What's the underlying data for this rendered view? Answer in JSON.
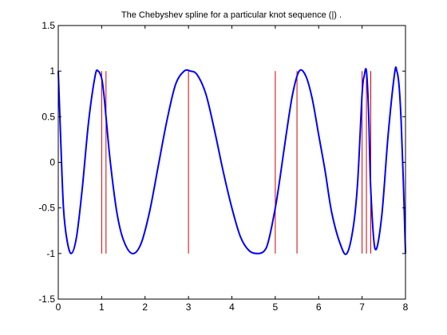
{
  "chart_data": {
    "type": "line",
    "title": "The Chebyshev spline for a particular knot sequence (|) .",
    "xlabel": "",
    "ylabel": "",
    "xlim": [
      0,
      8
    ],
    "ylim": [
      -1.5,
      1.5
    ],
    "xticks": [
      0,
      1,
      2,
      3,
      4,
      5,
      6,
      7,
      8
    ],
    "xtick_labels": [
      "0",
      "1",
      "2",
      "3",
      "4",
      "5",
      "6",
      "7",
      "8"
    ],
    "yticks": [
      -1.5,
      -1,
      -0.5,
      0,
      0.5,
      1,
      1.5
    ],
    "ytick_labels": [
      "-1.5",
      "-1",
      "-0.5",
      "0",
      "0.5",
      "1",
      "1.5"
    ],
    "grid": false,
    "legend": "none",
    "colors": {
      "spline": "#0000ff",
      "knots": "#cc0000",
      "axes": "#000000",
      "background": "#ffffff"
    },
    "knots": {
      "x": [
        0,
        1,
        1.1,
        3,
        5,
        5.5,
        7,
        7.1,
        7.2,
        8
      ],
      "y_range": [
        -1,
        1
      ]
    },
    "series": [
      {
        "x": [
          0,
          0.06,
          0.12,
          0.2,
          0.3,
          0.42,
          0.55,
          0.7,
          0.85,
          0.92,
          1.0,
          1.05,
          1.1,
          1.2,
          1.35,
          1.5,
          1.7,
          1.9,
          2.1,
          2.3,
          2.5,
          2.7,
          2.9,
          3.05,
          3.2,
          3.4,
          3.6,
          3.8,
          4.0,
          4.2,
          4.4,
          4.6,
          4.75,
          4.85,
          5.0,
          5.1,
          5.25,
          5.4,
          5.55,
          5.7,
          5.85,
          6.0,
          6.15,
          6.3,
          6.5,
          6.65,
          6.8,
          6.9,
          7.0,
          7.05,
          7.1,
          7.15,
          7.2,
          7.3,
          7.45,
          7.6,
          7.75,
          7.8,
          7.85,
          7.9,
          7.95,
          8.0
        ],
        "y": [
          1.0,
          0.2,
          -0.5,
          -0.85,
          -1.0,
          -0.82,
          -0.3,
          0.45,
          0.95,
          1.0,
          0.92,
          0.75,
          0.5,
          0.0,
          -0.55,
          -0.85,
          -1.0,
          -0.9,
          -0.55,
          -0.05,
          0.45,
          0.85,
          1.0,
          1.0,
          0.96,
          0.75,
          0.35,
          -0.1,
          -0.5,
          -0.82,
          -0.97,
          -1.0,
          -0.97,
          -0.85,
          -0.5,
          -0.2,
          0.3,
          0.75,
          1.0,
          0.95,
          0.7,
          0.3,
          -0.1,
          -0.55,
          -0.9,
          -1.0,
          -0.7,
          -0.2,
          0.75,
          0.95,
          1.0,
          0.55,
          -0.3,
          -0.95,
          -0.6,
          0.3,
          0.98,
          1.0,
          0.85,
          0.45,
          -0.2,
          -1.0
        ]
      }
    ]
  }
}
